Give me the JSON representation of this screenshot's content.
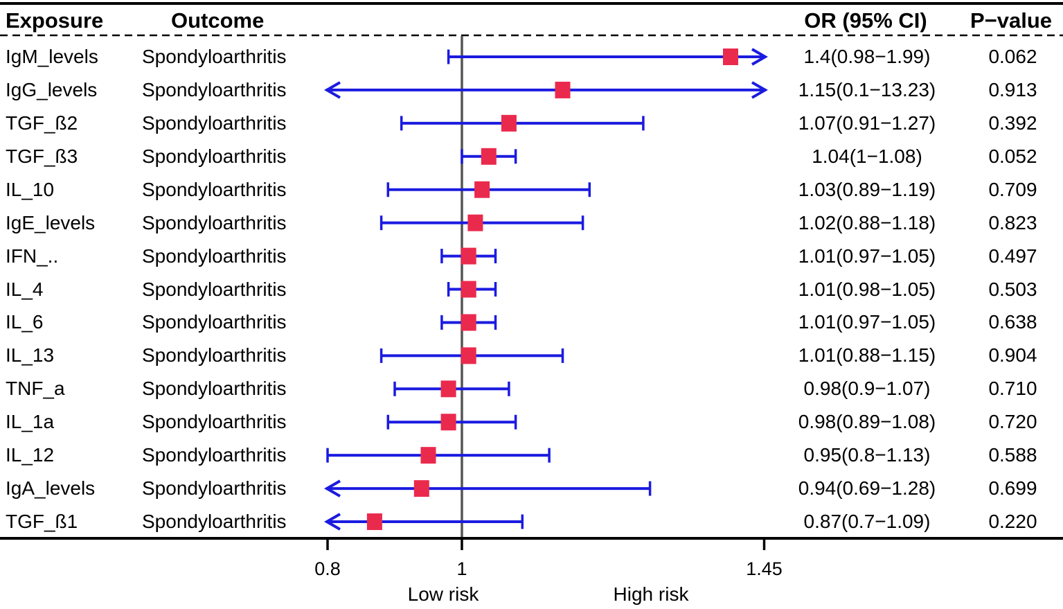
{
  "table": {
    "headers": {
      "exposure": "Exposure",
      "outcome": "Outcome",
      "or_ci": "OR (95% CI)",
      "p_value": "P−value"
    }
  },
  "axis": {
    "tick_labels": [
      "0.8",
      "1",
      "1.45"
    ],
    "low_risk_label": "Low risk",
    "high_risk_label": "High risk"
  },
  "colors": {
    "ci_line": "#1b1be0",
    "marker": "#ea2a4d",
    "ref_line": "#555555",
    "axis_line": "#000000"
  },
  "chart_data": {
    "type": "forest",
    "title": "",
    "columns": [
      "Exposure",
      "Outcome",
      "OR (95% CI)",
      "P−value"
    ],
    "x_axis": {
      "scale": "linear",
      "ticks": [
        0.8,
        1,
        1.45
      ],
      "ref_line": 1,
      "shown_range": [
        0.8,
        1.455
      ],
      "low_label": "Low risk",
      "high_label": "High risk"
    },
    "rows": [
      {
        "exposure": "IgM_levels",
        "outcome": "Spondyloarthritis",
        "or": 1.4,
        "ci_low": 0.98,
        "ci_high": 1.99,
        "or_ci_label": "1.4(0.98−1.99)",
        "p_value": "0.062"
      },
      {
        "exposure": "IgG_levels",
        "outcome": "Spondyloarthritis",
        "or": 1.15,
        "ci_low": 0.1,
        "ci_high": 13.23,
        "or_ci_label": "1.15(0.1−13.23)",
        "p_value": "0.913"
      },
      {
        "exposure": "TGF_ß2",
        "outcome": "Spondyloarthritis",
        "or": 1.07,
        "ci_low": 0.91,
        "ci_high": 1.27,
        "or_ci_label": "1.07(0.91−1.27)",
        "p_value": "0.392"
      },
      {
        "exposure": "TGF_ß3",
        "outcome": "Spondyloarthritis",
        "or": 1.04,
        "ci_low": 1,
        "ci_high": 1.08,
        "or_ci_label": "1.04(1−1.08)",
        "p_value": "0.052"
      },
      {
        "exposure": "IL_10",
        "outcome": "Spondyloarthritis",
        "or": 1.03,
        "ci_low": 0.89,
        "ci_high": 1.19,
        "or_ci_label": "1.03(0.89−1.19)",
        "p_value": "0.709"
      },
      {
        "exposure": "IgE_levels",
        "outcome": "Spondyloarthritis",
        "or": 1.02,
        "ci_low": 0.88,
        "ci_high": 1.18,
        "or_ci_label": "1.02(0.88−1.18)",
        "p_value": "0.823"
      },
      {
        "exposure": "IFN_..",
        "outcome": "Spondyloarthritis",
        "or": 1.01,
        "ci_low": 0.97,
        "ci_high": 1.05,
        "or_ci_label": "1.01(0.97−1.05)",
        "p_value": "0.497"
      },
      {
        "exposure": "IL_4",
        "outcome": "Spondyloarthritis",
        "or": 1.01,
        "ci_low": 0.98,
        "ci_high": 1.05,
        "or_ci_label": "1.01(0.98−1.05)",
        "p_value": "0.503"
      },
      {
        "exposure": "IL_6",
        "outcome": "Spondyloarthritis",
        "or": 1.01,
        "ci_low": 0.97,
        "ci_high": 1.05,
        "or_ci_label": "1.01(0.97−1.05)",
        "p_value": "0.638"
      },
      {
        "exposure": "IL_13",
        "outcome": "Spondyloarthritis",
        "or": 1.01,
        "ci_low": 0.88,
        "ci_high": 1.15,
        "or_ci_label": "1.01(0.88−1.15)",
        "p_value": "0.904"
      },
      {
        "exposure": "TNF_a",
        "outcome": "Spondyloarthritis",
        "or": 0.98,
        "ci_low": 0.9,
        "ci_high": 1.07,
        "or_ci_label": "0.98(0.9−1.07)",
        "p_value": "0.710"
      },
      {
        "exposure": "IL_1a",
        "outcome": "Spondyloarthritis",
        "or": 0.98,
        "ci_low": 0.89,
        "ci_high": 1.08,
        "or_ci_label": "0.98(0.89−1.08)",
        "p_value": "0.720"
      },
      {
        "exposure": "IL_12",
        "outcome": "Spondyloarthritis",
        "or": 0.95,
        "ci_low": 0.8,
        "ci_high": 1.13,
        "or_ci_label": "0.95(0.8−1.13)",
        "p_value": "0.588"
      },
      {
        "exposure": "IgA_levels",
        "outcome": "Spondyloarthritis",
        "or": 0.94,
        "ci_low": 0.69,
        "ci_high": 1.28,
        "or_ci_label": "0.94(0.69−1.28)",
        "p_value": "0.699"
      },
      {
        "exposure": "TGF_ß1",
        "outcome": "Spondyloarthritis",
        "or": 0.87,
        "ci_low": 0.7,
        "ci_high": 1.09,
        "or_ci_label": "0.87(0.7−1.09)",
        "p_value": "0.220"
      }
    ]
  }
}
